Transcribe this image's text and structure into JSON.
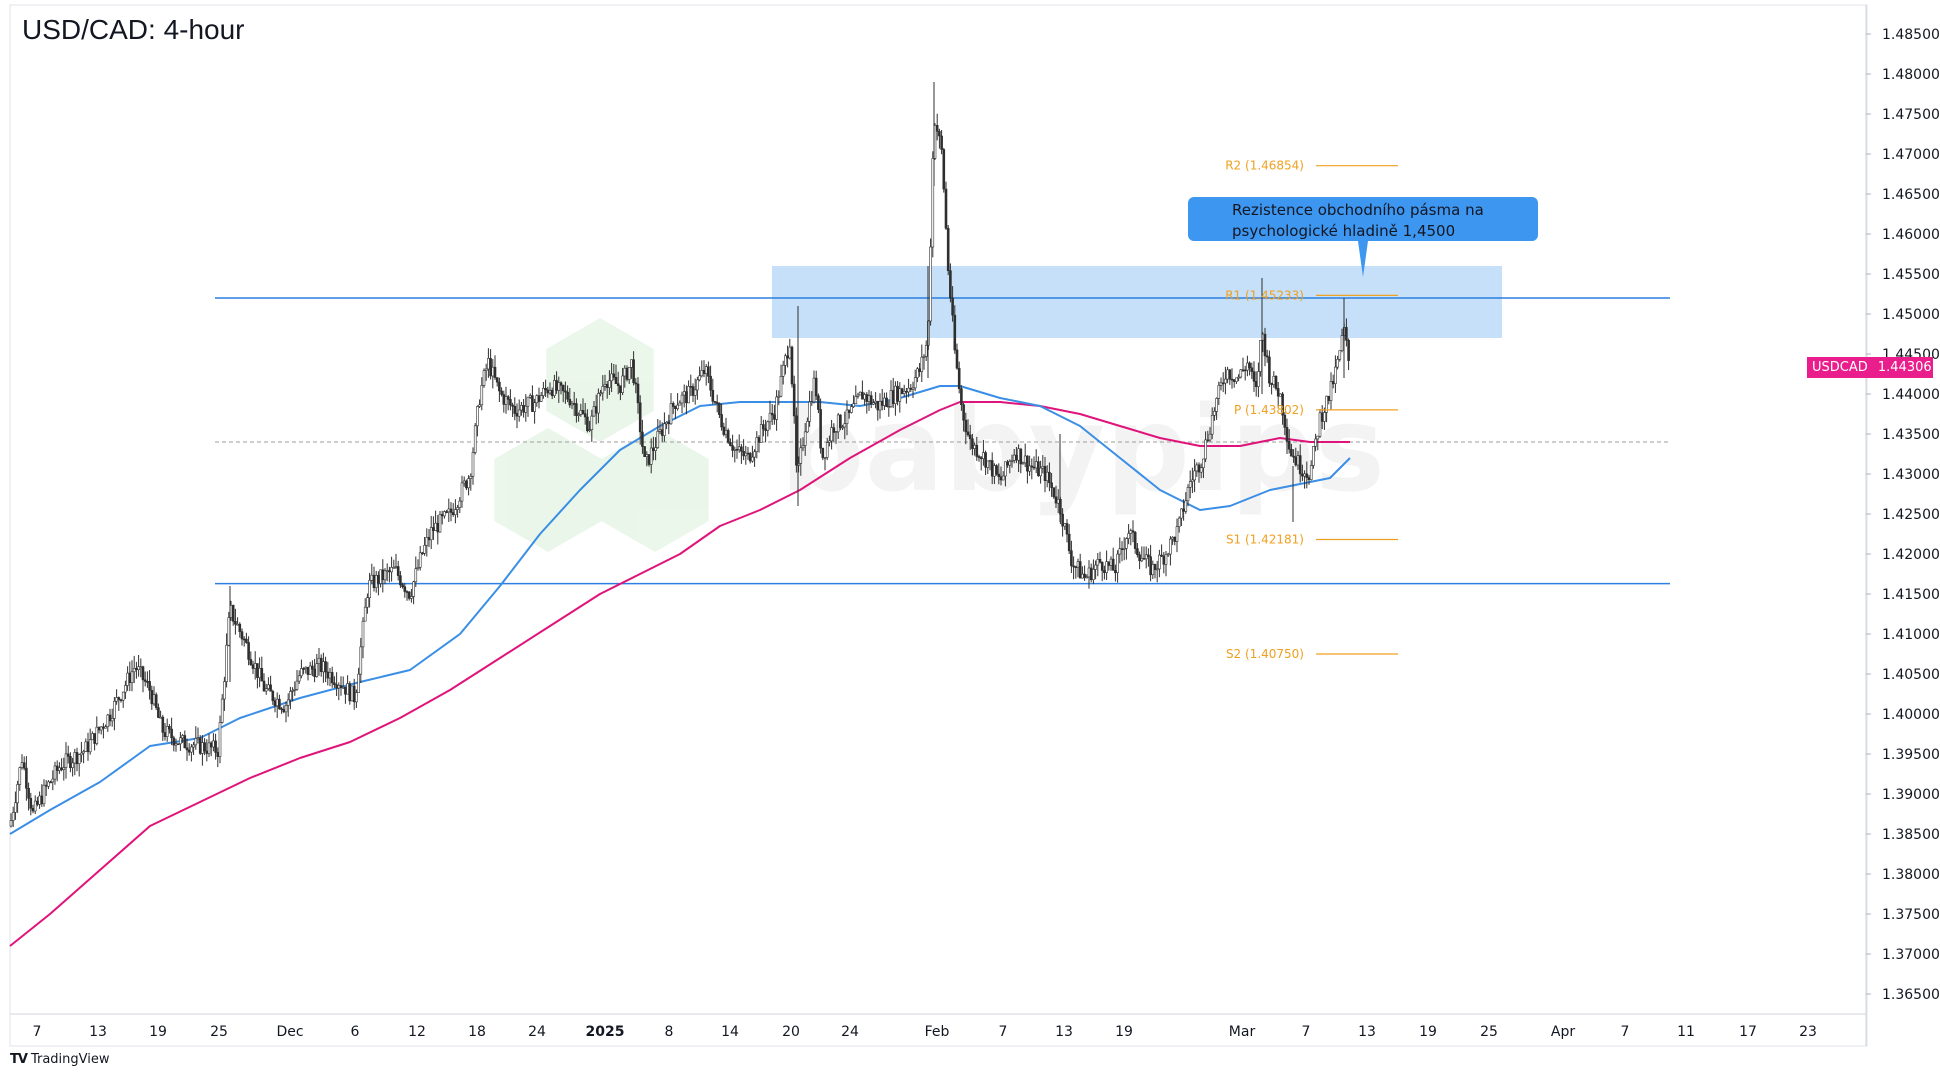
{
  "chart_data": {
    "type": "candlestick",
    "title": "USD/CAD: 4-hour",
    "symbol": "USDCAD",
    "last_price": "1.44306",
    "y_axis": {
      "ylim": [
        1.36,
        1.49
      ],
      "tick_labels": [
        "1.48500",
        "1.48000",
        "1.47500",
        "1.47000",
        "1.46500",
        "1.46000",
        "1.45500",
        "1.45000",
        "1.44500",
        "1.44000",
        "1.43500",
        "1.43000",
        "1.42500",
        "1.42000",
        "1.41500",
        "1.41000",
        "1.40500",
        "1.40000",
        "1.39500",
        "1.39000",
        "1.38500",
        "1.38000",
        "1.37500",
        "1.37000",
        "1.36500"
      ],
      "tick_values": [
        1.485,
        1.48,
        1.475,
        1.47,
        1.465,
        1.46,
        1.455,
        1.45,
        1.445,
        1.44,
        1.435,
        1.43,
        1.425,
        1.42,
        1.415,
        1.41,
        1.405,
        1.4,
        1.395,
        1.39,
        1.385,
        1.38,
        1.375,
        1.37,
        1.365
      ]
    },
    "x_axis": {
      "tick_labels": [
        "7",
        "13",
        "19",
        "25",
        "Dec",
        "6",
        "12",
        "18",
        "24",
        "2025",
        "8",
        "14",
        "20",
        "24",
        "Feb",
        "7",
        "13",
        "19",
        "Mar",
        "7",
        "13",
        "19",
        "25",
        "Apr",
        "7",
        "11",
        "17",
        "23"
      ],
      "tick_pos": [
        37,
        98,
        158,
        219,
        290,
        355,
        417,
        477,
        537,
        605,
        669,
        730,
        791,
        850,
        937,
        1003,
        1064,
        1124,
        1242,
        1306,
        1367,
        1428,
        1489,
        1563,
        1625,
        1686,
        1748,
        1808
      ],
      "bold": [
        "2025"
      ]
    },
    "key_points": [
      {
        "x": 10,
        "p": 1.386
      },
      {
        "x": 22,
        "p": 1.3945
      },
      {
        "x": 33,
        "p": 1.3875
      },
      {
        "x": 45,
        "p": 1.3905
      },
      {
        "x": 60,
        "p": 1.3935
      },
      {
        "x": 85,
        "p": 1.3955
      },
      {
        "x": 110,
        "p": 1.4
      },
      {
        "x": 135,
        "p": 1.406
      },
      {
        "x": 150,
        "p": 1.403
      },
      {
        "x": 162,
        "p": 1.398
      },
      {
        "x": 180,
        "p": 1.3965
      },
      {
        "x": 200,
        "p": 1.396
      },
      {
        "x": 218,
        "p": 1.3955
      },
      {
        "x": 230,
        "p": 1.413
      },
      {
        "x": 245,
        "p": 1.409
      },
      {
        "x": 265,
        "p": 1.403
      },
      {
        "x": 285,
        "p": 1.401
      },
      {
        "x": 300,
        "p": 1.405
      },
      {
        "x": 320,
        "p": 1.406
      },
      {
        "x": 340,
        "p": 1.404
      },
      {
        "x": 355,
        "p": 1.402
      },
      {
        "x": 368,
        "p": 1.416
      },
      {
        "x": 380,
        "p": 1.417
      },
      {
        "x": 395,
        "p": 1.418
      },
      {
        "x": 410,
        "p": 1.415
      },
      {
        "x": 422,
        "p": 1.42
      },
      {
        "x": 432,
        "p": 1.423
      },
      {
        "x": 450,
        "p": 1.425
      },
      {
        "x": 470,
        "p": 1.43
      },
      {
        "x": 480,
        "p": 1.44
      },
      {
        "x": 488,
        "p": 1.444
      },
      {
        "x": 500,
        "p": 1.44
      },
      {
        "x": 515,
        "p": 1.438
      },
      {
        "x": 535,
        "p": 1.439
      },
      {
        "x": 550,
        "p": 1.441
      },
      {
        "x": 570,
        "p": 1.4395
      },
      {
        "x": 590,
        "p": 1.436
      },
      {
        "x": 605,
        "p": 1.442
      },
      {
        "x": 620,
        "p": 1.441
      },
      {
        "x": 632,
        "p": 1.444
      },
      {
        "x": 645,
        "p": 1.431
      },
      {
        "x": 660,
        "p": 1.435
      },
      {
        "x": 675,
        "p": 1.439
      },
      {
        "x": 690,
        "p": 1.44
      },
      {
        "x": 705,
        "p": 1.443
      },
      {
        "x": 720,
        "p": 1.437
      },
      {
        "x": 735,
        "p": 1.433
      },
      {
        "x": 748,
        "p": 1.432
      },
      {
        "x": 760,
        "p": 1.435
      },
      {
        "x": 775,
        "p": 1.438
      },
      {
        "x": 790,
        "p": 1.447
      },
      {
        "x": 797,
        "p": 1.429
      },
      {
        "x": 805,
        "p": 1.436
      },
      {
        "x": 815,
        "p": 1.442
      },
      {
        "x": 822,
        "p": 1.432
      },
      {
        "x": 833,
        "p": 1.436
      },
      {
        "x": 848,
        "p": 1.437
      },
      {
        "x": 862,
        "p": 1.44
      },
      {
        "x": 878,
        "p": 1.4385
      },
      {
        "x": 895,
        "p": 1.44
      },
      {
        "x": 910,
        "p": 1.441
      },
      {
        "x": 920,
        "p": 1.443
      },
      {
        "x": 928,
        "p": 1.447
      },
      {
        "x": 934,
        "p": 1.475
      },
      {
        "x": 942,
        "p": 1.47
      },
      {
        "x": 948,
        "p": 1.456
      },
      {
        "x": 955,
        "p": 1.445
      },
      {
        "x": 962,
        "p": 1.438
      },
      {
        "x": 970,
        "p": 1.434
      },
      {
        "x": 985,
        "p": 1.432
      },
      {
        "x": 1000,
        "p": 1.429
      },
      {
        "x": 1015,
        "p": 1.433
      },
      {
        "x": 1030,
        "p": 1.431
      },
      {
        "x": 1045,
        "p": 1.43
      },
      {
        "x": 1060,
        "p": 1.426
      },
      {
        "x": 1072,
        "p": 1.419
      },
      {
        "x": 1085,
        "p": 1.417
      },
      {
        "x": 1100,
        "p": 1.419
      },
      {
        "x": 1115,
        "p": 1.418
      },
      {
        "x": 1128,
        "p": 1.423
      },
      {
        "x": 1140,
        "p": 1.42
      },
      {
        "x": 1152,
        "p": 1.418
      },
      {
        "x": 1165,
        "p": 1.42
      },
      {
        "x": 1178,
        "p": 1.423
      },
      {
        "x": 1190,
        "p": 1.429
      },
      {
        "x": 1202,
        "p": 1.432
      },
      {
        "x": 1214,
        "p": 1.438
      },
      {
        "x": 1226,
        "p": 1.443
      },
      {
        "x": 1238,
        "p": 1.442
      },
      {
        "x": 1248,
        "p": 1.444
      },
      {
        "x": 1256,
        "p": 1.44
      },
      {
        "x": 1262,
        "p": 1.448
      },
      {
        "x": 1270,
        "p": 1.442
      },
      {
        "x": 1280,
        "p": 1.44
      },
      {
        "x": 1290,
        "p": 1.433
      },
      {
        "x": 1300,
        "p": 1.431
      },
      {
        "x": 1310,
        "p": 1.43
      },
      {
        "x": 1320,
        "p": 1.437
      },
      {
        "x": 1330,
        "p": 1.44
      },
      {
        "x": 1338,
        "p": 1.444
      },
      {
        "x": 1344,
        "p": 1.448
      },
      {
        "x": 1350,
        "p": 1.443
      }
    ],
    "ema_blue": [
      {
        "x": 10,
        "p": 1.385
      },
      {
        "x": 50,
        "p": 1.388
      },
      {
        "x": 100,
        "p": 1.3915
      },
      {
        "x": 150,
        "p": 1.396
      },
      {
        "x": 200,
        "p": 1.397
      },
      {
        "x": 240,
        "p": 1.3995
      },
      {
        "x": 300,
        "p": 1.402
      },
      {
        "x": 360,
        "p": 1.404
      },
      {
        "x": 410,
        "p": 1.4055
      },
      {
        "x": 460,
        "p": 1.41
      },
      {
        "x": 500,
        "p": 1.416
      },
      {
        "x": 540,
        "p": 1.4225
      },
      {
        "x": 580,
        "p": 1.428
      },
      {
        "x": 620,
        "p": 1.433
      },
      {
        "x": 660,
        "p": 1.436
      },
      {
        "x": 700,
        "p": 1.4385
      },
      {
        "x": 740,
        "p": 1.439
      },
      {
        "x": 780,
        "p": 1.439
      },
      {
        "x": 820,
        "p": 1.439
      },
      {
        "x": 860,
        "p": 1.4385
      },
      {
        "x": 900,
        "p": 1.4395
      },
      {
        "x": 940,
        "p": 1.441
      },
      {
        "x": 960,
        "p": 1.441
      },
      {
        "x": 1000,
        "p": 1.4395
      },
      {
        "x": 1040,
        "p": 1.4385
      },
      {
        "x": 1080,
        "p": 1.436
      },
      {
        "x": 1120,
        "p": 1.432
      },
      {
        "x": 1160,
        "p": 1.428
      },
      {
        "x": 1200,
        "p": 1.4255
      },
      {
        "x": 1230,
        "p": 1.426
      },
      {
        "x": 1270,
        "p": 1.428
      },
      {
        "x": 1310,
        "p": 1.429
      },
      {
        "x": 1330,
        "p": 1.4295
      },
      {
        "x": 1350,
        "p": 1.432
      }
    ],
    "ema_magenta": [
      {
        "x": 10,
        "p": 1.371
      },
      {
        "x": 50,
        "p": 1.375
      },
      {
        "x": 100,
        "p": 1.3805
      },
      {
        "x": 150,
        "p": 1.386
      },
      {
        "x": 200,
        "p": 1.389
      },
      {
        "x": 250,
        "p": 1.392
      },
      {
        "x": 300,
        "p": 1.3945
      },
      {
        "x": 350,
        "p": 1.3965
      },
      {
        "x": 400,
        "p": 1.3995
      },
      {
        "x": 450,
        "p": 1.403
      },
      {
        "x": 500,
        "p": 1.407
      },
      {
        "x": 550,
        "p": 1.411
      },
      {
        "x": 600,
        "p": 1.415
      },
      {
        "x": 640,
        "p": 1.4175
      },
      {
        "x": 680,
        "p": 1.42
      },
      {
        "x": 720,
        "p": 1.4235
      },
      {
        "x": 760,
        "p": 1.4255
      },
      {
        "x": 800,
        "p": 1.428
      },
      {
        "x": 850,
        "p": 1.432
      },
      {
        "x": 900,
        "p": 1.4355
      },
      {
        "x": 940,
        "p": 1.438
      },
      {
        "x": 960,
        "p": 1.439
      },
      {
        "x": 1000,
        "p": 1.439
      },
      {
        "x": 1040,
        "p": 1.4385
      },
      {
        "x": 1080,
        "p": 1.4375
      },
      {
        "x": 1120,
        "p": 1.436
      },
      {
        "x": 1160,
        "p": 1.4345
      },
      {
        "x": 1200,
        "p": 1.4335
      },
      {
        "x": 1240,
        "p": 1.4335
      },
      {
        "x": 1280,
        "p": 1.4345
      },
      {
        "x": 1310,
        "p": 1.434
      },
      {
        "x": 1350,
        "p": 1.434
      }
    ],
    "horizontal_lines": [
      {
        "price": 1.452,
        "color": "#2d7fe0",
        "style": "solid"
      },
      {
        "price": 1.4163,
        "color": "#2d7fe0",
        "style": "solid"
      },
      {
        "price": 1.434,
        "color": "#9e9e9e",
        "style": "dashed"
      }
    ],
    "resistance_zone": {
      "from": 1.447,
      "to": 1.456,
      "color": "#bbdaf7"
    },
    "pivots": [
      {
        "label": "R2 (1.46854)",
        "price": 1.46854
      },
      {
        "label": "R1 (1.45233)",
        "price": 1.45233
      },
      {
        "label": "P (1.43802)",
        "price": 1.43802
      },
      {
        "label": "S1 (1.42181)",
        "price": 1.42181
      },
      {
        "label": "S2 (1.40750)",
        "price": 1.4075
      }
    ],
    "annotation": "Rezistence obchodního pásma na psychologické hladině 1,4500",
    "colors": {
      "candle_up": "#2f2f2f",
      "candle_down": "#2f2f2f",
      "ema_fast": "#3a8ee6",
      "ema_slow": "#e0137a",
      "pivot": "#f0a020",
      "price_tag": "#e91e8c"
    }
  },
  "branding": {
    "tradingview": "TradingView",
    "watermark": "babypips"
  }
}
